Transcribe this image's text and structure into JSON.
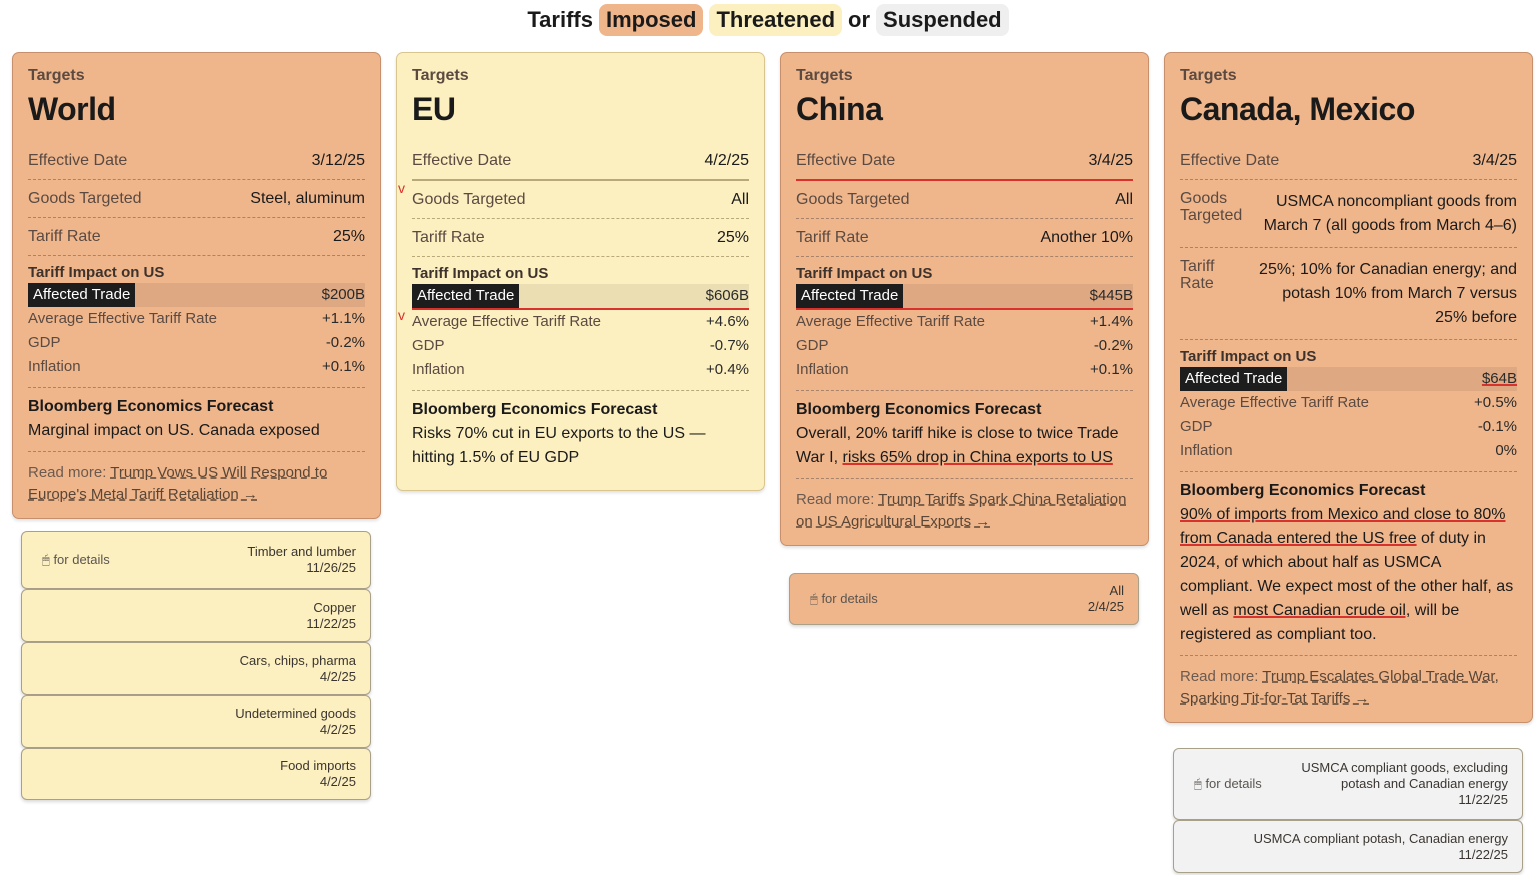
{
  "legend": {
    "prefix": "Tariffs",
    "imposed": "Imposed",
    "threatened": "Threatened",
    "or": "or",
    "suspended": "Suspended"
  },
  "common": {
    "targets": "Targets",
    "effective_date": "Effective Date",
    "goods_targeted": "Goods Targeted",
    "goods_two_line": "Goods Targeted",
    "tariff_rate": "Tariff Rate",
    "tariff_impact": "Tariff Impact on US",
    "affected_trade": "Affected Trade",
    "avg_rate": "Average Effective Tariff Rate",
    "gdp": "GDP",
    "inflation": "Inflation",
    "forecast_head": "Bloomberg Economics Forecast",
    "read_more": "Read more:",
    "for_details": "for details"
  },
  "cards": {
    "world": {
      "status": "imposed",
      "title": "World",
      "date": "3/12/25",
      "goods": "Steel, aluminum",
      "rate": "25%",
      "affected": "$200B",
      "avg": "+1.1%",
      "gdp": "-0.2%",
      "inflation": "+0.1%",
      "forecast": "Marginal impact on US. Canada exposed",
      "link": "Trump Vows US Will Respond to Europe's Metal Tariff Retaliation →"
    },
    "eu": {
      "status": "threatened",
      "title": "EU",
      "date": "4/2/25",
      "goods": "All",
      "rate": "25%",
      "affected": "$606B",
      "avg": "+4.6%",
      "gdp": "-0.7%",
      "inflation": "+0.4%",
      "forecast": "Risks 70% cut in EU exports to the US — hitting 1.5% of EU GDP"
    },
    "china": {
      "status": "imposed",
      "title": "China",
      "date": "3/4/25",
      "goods": "All",
      "rate": "Another 10%",
      "affected": "$445B",
      "avg": "+1.4%",
      "gdp": "-0.2%",
      "inflation": "+0.1%",
      "forecast_a": "Overall, 20% tariff hike is close to twice Trade War I, ",
      "forecast_b": "risks 65% drop in China exports to US",
      "link": "Trump Tariffs Spark China Retaliation on US Agricultural Exports →"
    },
    "canmex": {
      "status": "imposed",
      "title": "Canada, Mexico",
      "date": "3/4/25",
      "goods": "USMCA noncompliant goods from March 7 (all goods from March 4–6)",
      "rate_key": "Tariff Rate",
      "rate": "25%; 10% for Canadian energy; and potash 10% from March 7 versus 25% before",
      "affected": "$64B",
      "avg": "+0.5%",
      "gdp": "-0.1%",
      "inflation": "0%",
      "forecast_a": "90% of imports from Mexico and close to 80% from Canada entered the US free",
      "forecast_b": " of duty in 2024, of which about half as USMCA compliant. We expect most of the other half, as well as ",
      "forecast_c": "most Canadian crude oil,",
      "forecast_d": " will be registered as compliant too.",
      "link": "Trump Escalates Global Trade War, Sparking Tit-for-Tat Tariffs →"
    }
  },
  "world_subs": [
    {
      "label": "Timber and lumber",
      "date": "11/26/25",
      "hint": true
    },
    {
      "label": "Copper",
      "date": "11/22/25"
    },
    {
      "label": "Cars, chips, pharma",
      "date": "4/2/25"
    },
    {
      "label": "Undetermined goods",
      "date": "4/2/25"
    },
    {
      "label": "Food imports",
      "date": "4/2/25"
    }
  ],
  "china_sub": {
    "label": "All",
    "date": "2/4/25"
  },
  "canmex_subs": [
    {
      "label": "USMCA compliant goods, excluding potash and Canadian energy",
      "date": "11/22/25"
    },
    {
      "label": "USMCA compliant potash, Canadian energy",
      "date": "11/22/25"
    }
  ]
}
